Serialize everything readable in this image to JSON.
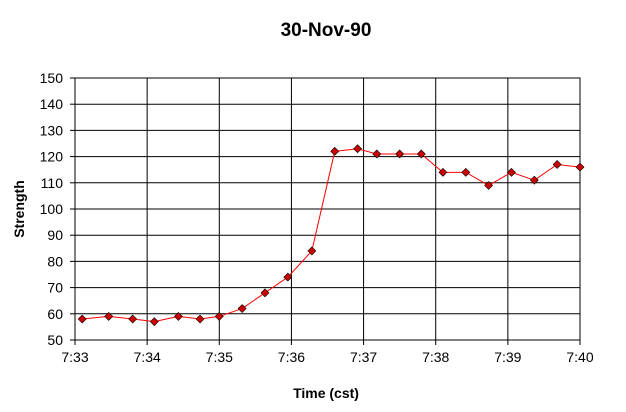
{
  "chart_data": {
    "type": "line",
    "title": "30-Nov-90",
    "xlabel": "Time (cst)",
    "ylabel": "Strength",
    "x_tick_labels": [
      "7:33",
      "7:34",
      "7:35",
      "7:36",
      "7:37",
      "7:38",
      "7:39",
      "7:40"
    ],
    "y_tick_labels": [
      "50",
      "60",
      "70",
      "80",
      "90",
      "100",
      "110",
      "120",
      "130",
      "140",
      "150"
    ],
    "ylim": [
      50,
      150
    ],
    "xlim": [
      "7:33",
      "7:40"
    ],
    "grid": true,
    "legend": "none",
    "series": [
      {
        "color": "#ff0000",
        "marker_color": "#cc0000",
        "x": [
          "7:33:06",
          "7:33:28",
          "7:33:48",
          "7:34:06",
          "7:34:26",
          "7:34:44",
          "7:35:00",
          "7:35:19",
          "7:35:38",
          "7:35:57",
          "7:36:17",
          "7:36:36",
          "7:36:55",
          "7:37:11",
          "7:37:30",
          "7:37:48",
          "7:38:06",
          "7:38:25",
          "7:38:44",
          "7:39:03",
          "7:39:22",
          "7:39:41",
          "7:40:00"
        ],
        "values": [
          58,
          59,
          58,
          57,
          59,
          58,
          59,
          62,
          68,
          74,
          84,
          122,
          123,
          121,
          121,
          121,
          114,
          114,
          109,
          114,
          111,
          117,
          116
        ]
      }
    ]
  }
}
